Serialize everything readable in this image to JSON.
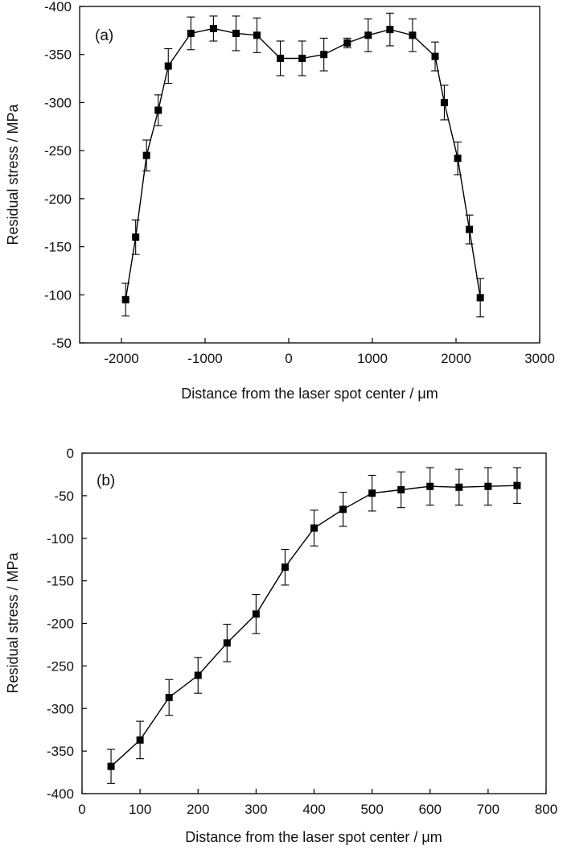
{
  "chart_data": [
    {
      "type": "line",
      "panel_label": "(a)",
      "xlabel": "Distance from the laser spot center / μm",
      "ylabel": "Residual stress / MPa",
      "xlim": [
        -2500,
        3000
      ],
      "ylim": [
        -50,
        -400
      ],
      "xticks": [
        -2000,
        -1000,
        0,
        1000,
        2000,
        3000
      ],
      "yticks": [
        -400,
        -350,
        -300,
        -250,
        -200,
        -150,
        -100,
        -50
      ],
      "grid": false,
      "series": [
        {
          "x": [
            -1950,
            -1830,
            -1700,
            -1560,
            -1440,
            -1170,
            -900,
            -630,
            -380,
            -100,
            160,
            420,
            700,
            950,
            1210,
            1480,
            1750,
            1860,
            2020,
            2160,
            2290
          ],
          "y": [
            -95,
            -160,
            -245,
            -292,
            -338,
            -372,
            -377,
            -372,
            -370,
            -346,
            -346,
            -350,
            -362,
            -370,
            -376,
            -370,
            -348,
            -300,
            -242,
            -168,
            -97
          ],
          "err": [
            17,
            18,
            16,
            16,
            18,
            17,
            13,
            18,
            18,
            18,
            18,
            17,
            5,
            17,
            17,
            17,
            15,
            18,
            17,
            15,
            20
          ]
        }
      ]
    },
    {
      "type": "line",
      "panel_label": "(b)",
      "xlabel": "Distance from the laser spot center / μm",
      "ylabel": "Residual stress / MPa",
      "xlim": [
        0,
        800
      ],
      "ylim": [
        -400,
        0
      ],
      "xticks": [
        0,
        100,
        200,
        300,
        400,
        500,
        600,
        700,
        800
      ],
      "yticks": [
        0,
        -50,
        -100,
        -150,
        -200,
        -250,
        -300,
        -350,
        -400
      ],
      "grid": false,
      "series": [
        {
          "x": [
            50,
            100,
            150,
            200,
            250,
            300,
            350,
            400,
            450,
            500,
            550,
            600,
            650,
            700,
            750
          ],
          "y": [
            -368,
            -337,
            -287,
            -261,
            -223,
            -189,
            -134,
            -88,
            -66,
            -47,
            -43,
            -39,
            -40,
            -39,
            -38
          ],
          "err": [
            20,
            22,
            21,
            21,
            22,
            23,
            21,
            21,
            20,
            21,
            21,
            22,
            21,
            22,
            21
          ]
        }
      ]
    }
  ]
}
